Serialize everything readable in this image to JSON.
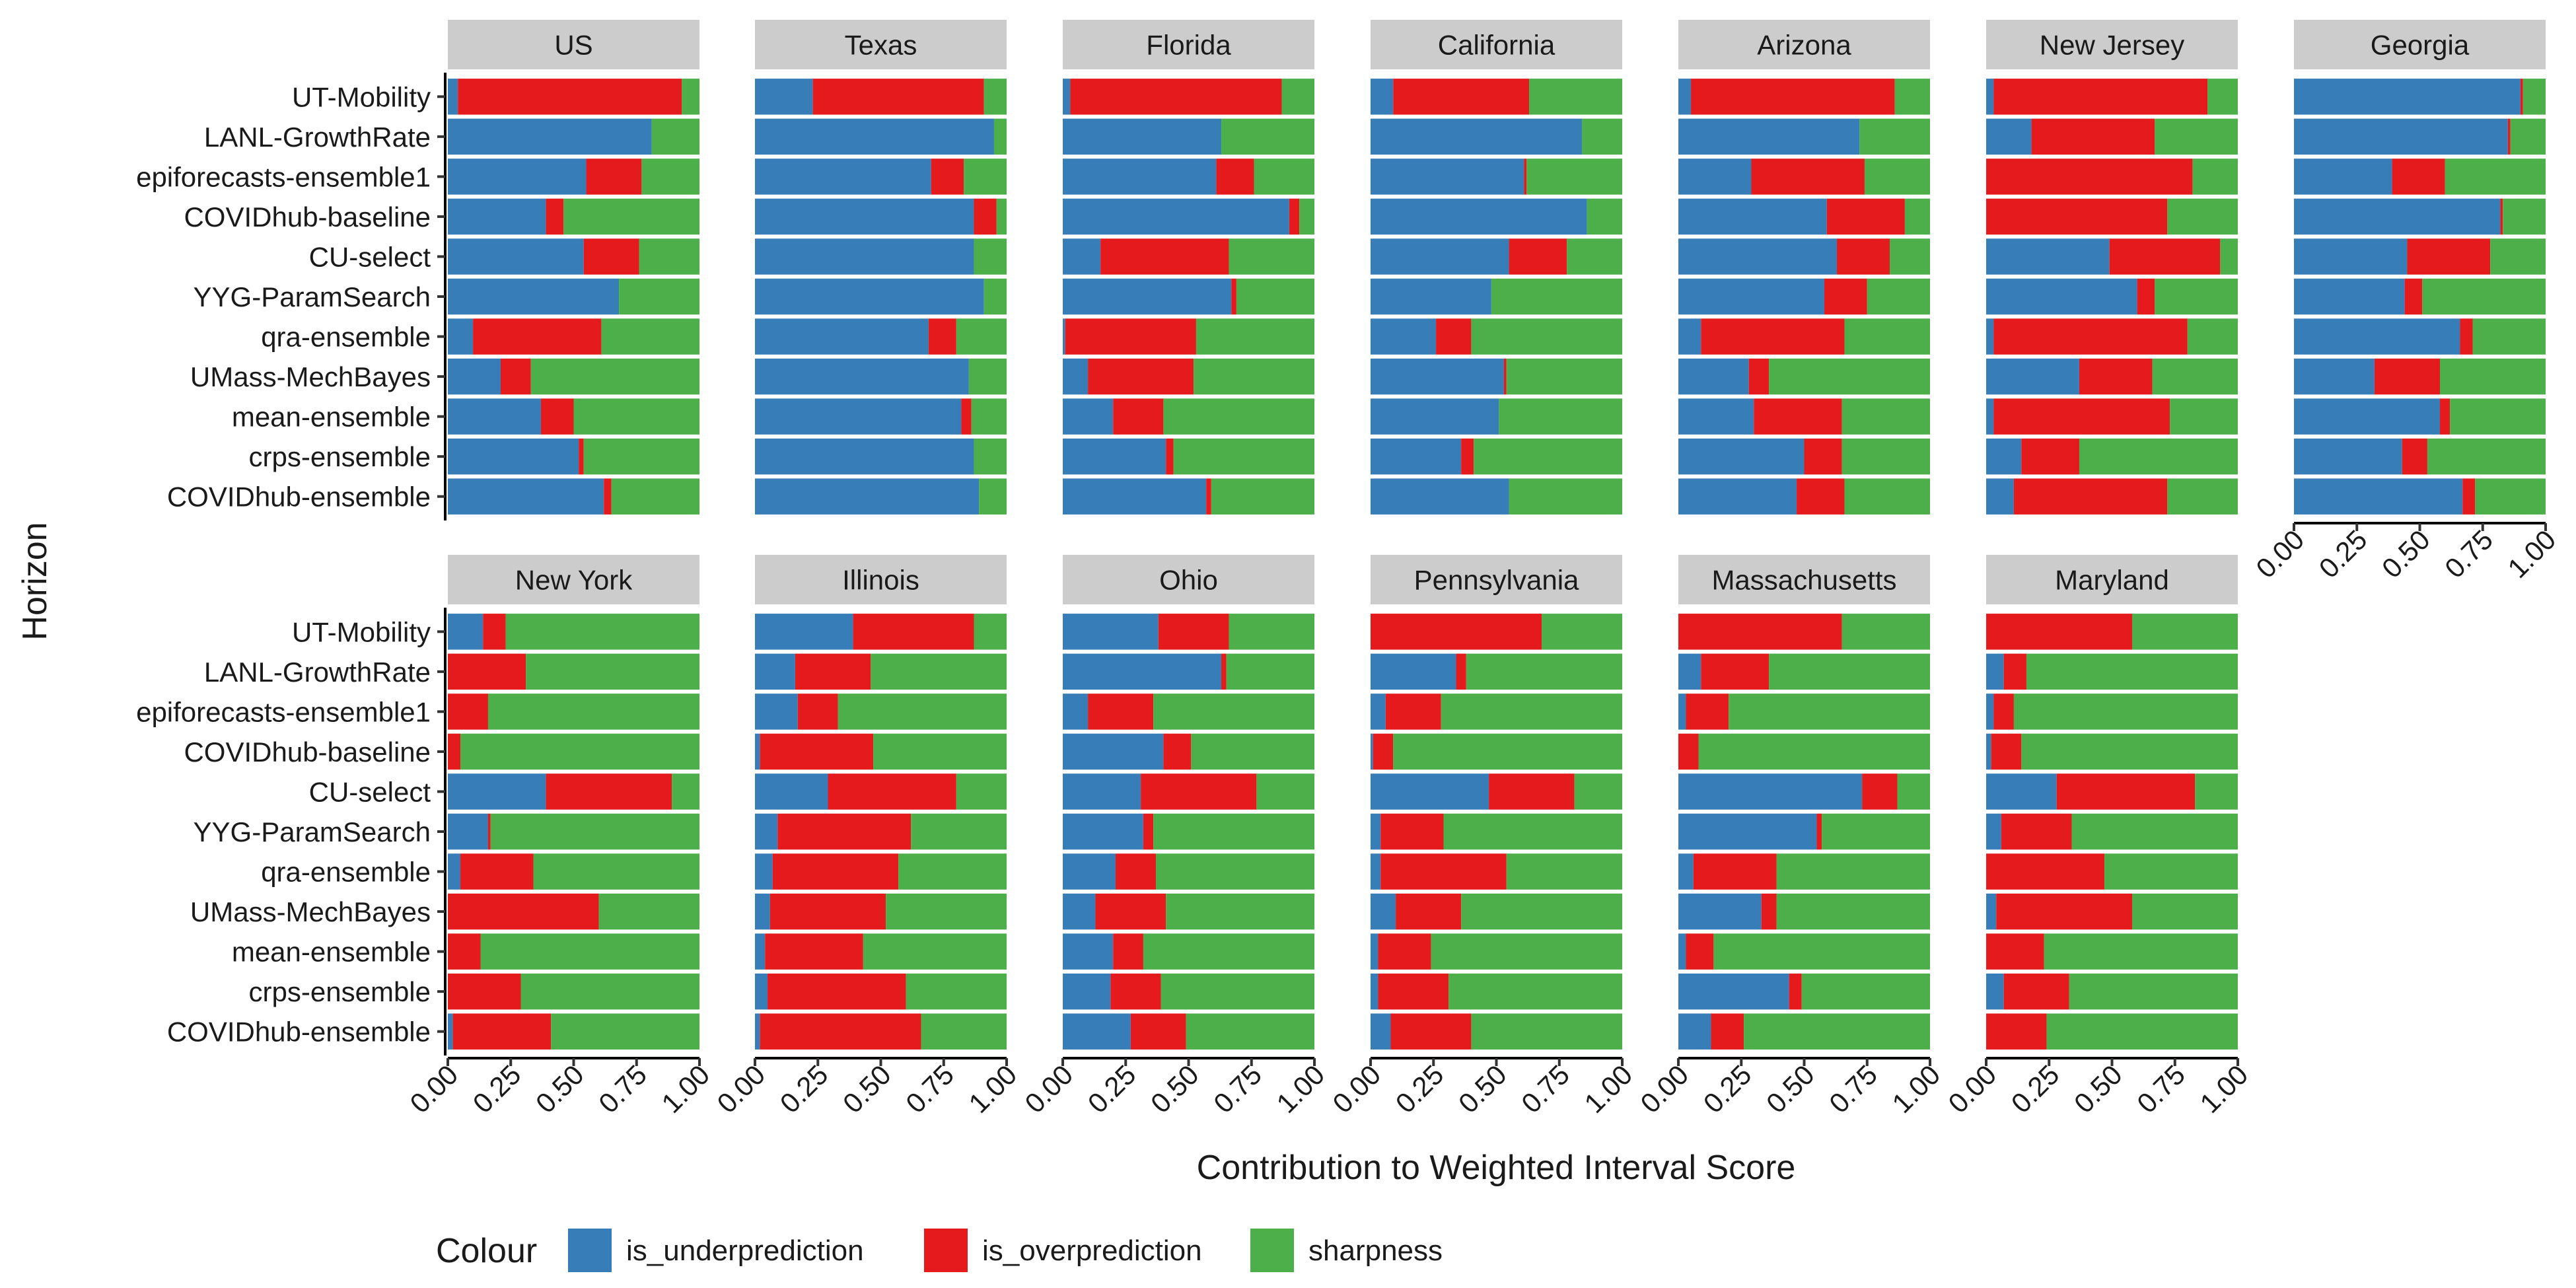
{
  "chart_data": {
    "type": "bar",
    "orientation": "horizontal",
    "stacked": true,
    "xlabel": "Contribution to Weighted Interval Score",
    "ylabel": "Horizon",
    "xlim": [
      0,
      1
    ],
    "xticks": [
      "0.00",
      "0.25",
      "0.50",
      "0.75",
      "1.00"
    ],
    "categories": [
      "UT-Mobility",
      "LANL-GrowthRate",
      "epiforecasts-ensemble1",
      "COVIDhub-baseline",
      "CU-select",
      "YYG-ParamSearch",
      "qra-ensemble",
      "UMass-MechBayes",
      "mean-ensemble",
      "crps-ensemble",
      "COVIDhub-ensemble"
    ],
    "legend": {
      "title": "Colour",
      "position": "bottom",
      "entries": [
        {
          "name": "is_underprediction",
          "color": "#377EB8"
        },
        {
          "name": "is_overprediction",
          "color": "#E41A1C"
        },
        {
          "name": "sharpness",
          "color": "#4DAF4A"
        }
      ]
    },
    "panels": [
      {
        "name": "US",
        "under": [
          0.04,
          0.81,
          0.55,
          0.39,
          0.54,
          0.68,
          0.1,
          0.21,
          0.37,
          0.52,
          0.62
        ],
        "over": [
          0.89,
          0.0,
          0.22,
          0.07,
          0.22,
          0.0,
          0.51,
          0.12,
          0.13,
          0.02,
          0.03
        ]
      },
      {
        "name": "Texas",
        "under": [
          0.23,
          0.95,
          0.7,
          0.87,
          0.87,
          0.91,
          0.69,
          0.85,
          0.82,
          0.87,
          0.89
        ],
        "over": [
          0.68,
          0.0,
          0.13,
          0.09,
          0.0,
          0.0,
          0.11,
          0.0,
          0.04,
          0.0,
          0.0
        ]
      },
      {
        "name": "Florida",
        "under": [
          0.03,
          0.63,
          0.61,
          0.9,
          0.15,
          0.67,
          0.01,
          0.1,
          0.2,
          0.41,
          0.57
        ],
        "over": [
          0.84,
          0.0,
          0.15,
          0.04,
          0.51,
          0.02,
          0.52,
          0.42,
          0.2,
          0.03,
          0.02
        ]
      },
      {
        "name": "California",
        "under": [
          0.09,
          0.84,
          0.61,
          0.86,
          0.55,
          0.48,
          0.26,
          0.53,
          0.51,
          0.36,
          0.55
        ],
        "over": [
          0.54,
          0.0,
          0.01,
          0.0,
          0.23,
          0.0,
          0.14,
          0.01,
          0.0,
          0.05,
          0.0
        ]
      },
      {
        "name": "Arizona",
        "under": [
          0.05,
          0.72,
          0.29,
          0.59,
          0.63,
          0.58,
          0.09,
          0.28,
          0.3,
          0.5,
          0.47
        ],
        "over": [
          0.81,
          0.0,
          0.45,
          0.31,
          0.21,
          0.17,
          0.57,
          0.08,
          0.35,
          0.15,
          0.19
        ]
      },
      {
        "name": "New Jersey",
        "under": [
          0.03,
          0.18,
          0.0,
          0.0,
          0.49,
          0.6,
          0.03,
          0.37,
          0.03,
          0.14,
          0.11
        ],
        "over": [
          0.85,
          0.49,
          0.82,
          0.72,
          0.44,
          0.07,
          0.77,
          0.29,
          0.7,
          0.23,
          0.61
        ]
      },
      {
        "name": "Georgia",
        "under": [
          0.9,
          0.85,
          0.39,
          0.82,
          0.45,
          0.44,
          0.66,
          0.32,
          0.58,
          0.43,
          0.67
        ],
        "over": [
          0.01,
          0.01,
          0.21,
          0.01,
          0.33,
          0.07,
          0.05,
          0.26,
          0.04,
          0.1,
          0.05
        ]
      },
      {
        "name": "New York",
        "under": [
          0.14,
          0.0,
          0.0,
          0.0,
          0.39,
          0.16,
          0.05,
          0.0,
          0.0,
          0.0,
          0.02
        ],
        "over": [
          0.09,
          0.31,
          0.16,
          0.05,
          0.5,
          0.01,
          0.29,
          0.6,
          0.13,
          0.29,
          0.39
        ]
      },
      {
        "name": "Illinois",
        "under": [
          0.39,
          0.16,
          0.17,
          0.02,
          0.29,
          0.09,
          0.07,
          0.06,
          0.04,
          0.05,
          0.02
        ],
        "over": [
          0.48,
          0.3,
          0.16,
          0.45,
          0.51,
          0.53,
          0.5,
          0.46,
          0.39,
          0.55,
          0.64
        ]
      },
      {
        "name": "Ohio",
        "under": [
          0.38,
          0.63,
          0.1,
          0.4,
          0.31,
          0.32,
          0.21,
          0.13,
          0.2,
          0.19,
          0.27
        ],
        "over": [
          0.28,
          0.02,
          0.26,
          0.11,
          0.46,
          0.04,
          0.16,
          0.28,
          0.12,
          0.2,
          0.22
        ]
      },
      {
        "name": "Pennsylvania",
        "under": [
          0.0,
          0.34,
          0.06,
          0.01,
          0.47,
          0.04,
          0.04,
          0.1,
          0.03,
          0.03,
          0.08
        ],
        "over": [
          0.68,
          0.04,
          0.22,
          0.08,
          0.34,
          0.25,
          0.5,
          0.26,
          0.21,
          0.28,
          0.32
        ]
      },
      {
        "name": "Massachusetts",
        "under": [
          0.0,
          0.09,
          0.03,
          0.0,
          0.73,
          0.55,
          0.06,
          0.33,
          0.03,
          0.44,
          0.13
        ],
        "over": [
          0.65,
          0.27,
          0.17,
          0.08,
          0.14,
          0.02,
          0.33,
          0.06,
          0.11,
          0.05,
          0.13
        ]
      },
      {
        "name": "Maryland",
        "under": [
          0.0,
          0.07,
          0.03,
          0.02,
          0.28,
          0.06,
          0.0,
          0.04,
          0.0,
          0.07,
          0.0
        ],
        "over": [
          0.58,
          0.09,
          0.08,
          0.12,
          0.55,
          0.28,
          0.47,
          0.54,
          0.23,
          0.26,
          0.24
        ]
      }
    ]
  }
}
